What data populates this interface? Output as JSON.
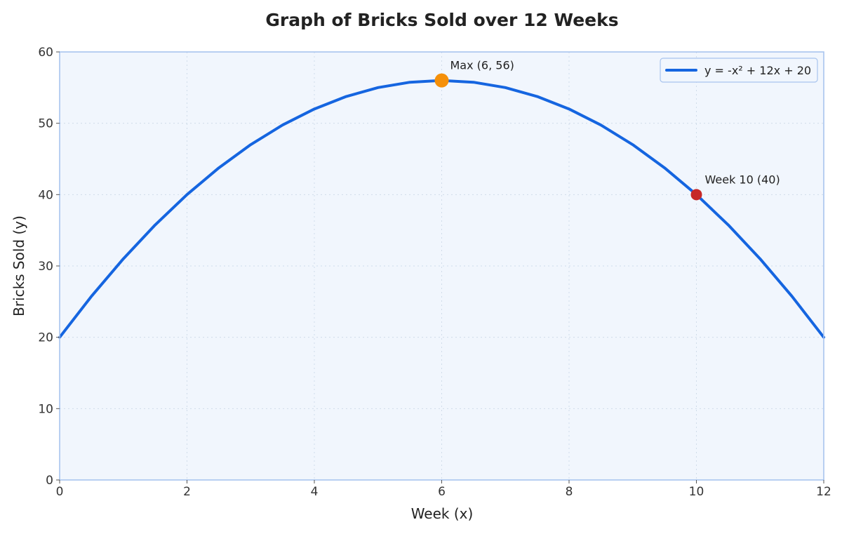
{
  "chart_data": {
    "type": "line",
    "title": "Graph of Bricks Sold over 12 Weeks",
    "xlabel": "Week (x)",
    "ylabel": "Bricks Sold (y)",
    "xlim": [
      0,
      12
    ],
    "ylim": [
      0,
      60
    ],
    "x_ticks": [
      0,
      2,
      4,
      6,
      8,
      10,
      12
    ],
    "y_ticks": [
      0,
      10,
      20,
      30,
      40,
      50,
      60
    ],
    "grid": true,
    "legend_position": "top-right",
    "series": [
      {
        "name": "y = -x² + 12x + 20",
        "color": "#1565e0",
        "x": [
          0,
          0.5,
          1,
          1.5,
          2,
          2.5,
          3,
          3.5,
          4,
          4.5,
          5,
          5.5,
          6,
          6.5,
          7,
          7.5,
          8,
          8.5,
          9,
          9.5,
          10,
          10.5,
          11,
          11.5,
          12
        ],
        "y": [
          20,
          25.75,
          31,
          35.75,
          40,
          43.75,
          47,
          49.75,
          52,
          53.75,
          55,
          55.75,
          56,
          55.75,
          55,
          53.75,
          52,
          49.75,
          47,
          43.75,
          40,
          35.75,
          31,
          25.75,
          20
        ]
      }
    ],
    "annotations": [
      {
        "name": "max-point",
        "x": 6,
        "y": 56,
        "label": "Max (6, 56)",
        "color": "#f5900a"
      },
      {
        "name": "week10-point",
        "x": 10,
        "y": 40,
        "label": "Week 10 (40)",
        "color": "#c62828"
      }
    ],
    "colors": {
      "plot_background": "#f1f6fd",
      "plot_border": "#a8c4ee"
    }
  }
}
